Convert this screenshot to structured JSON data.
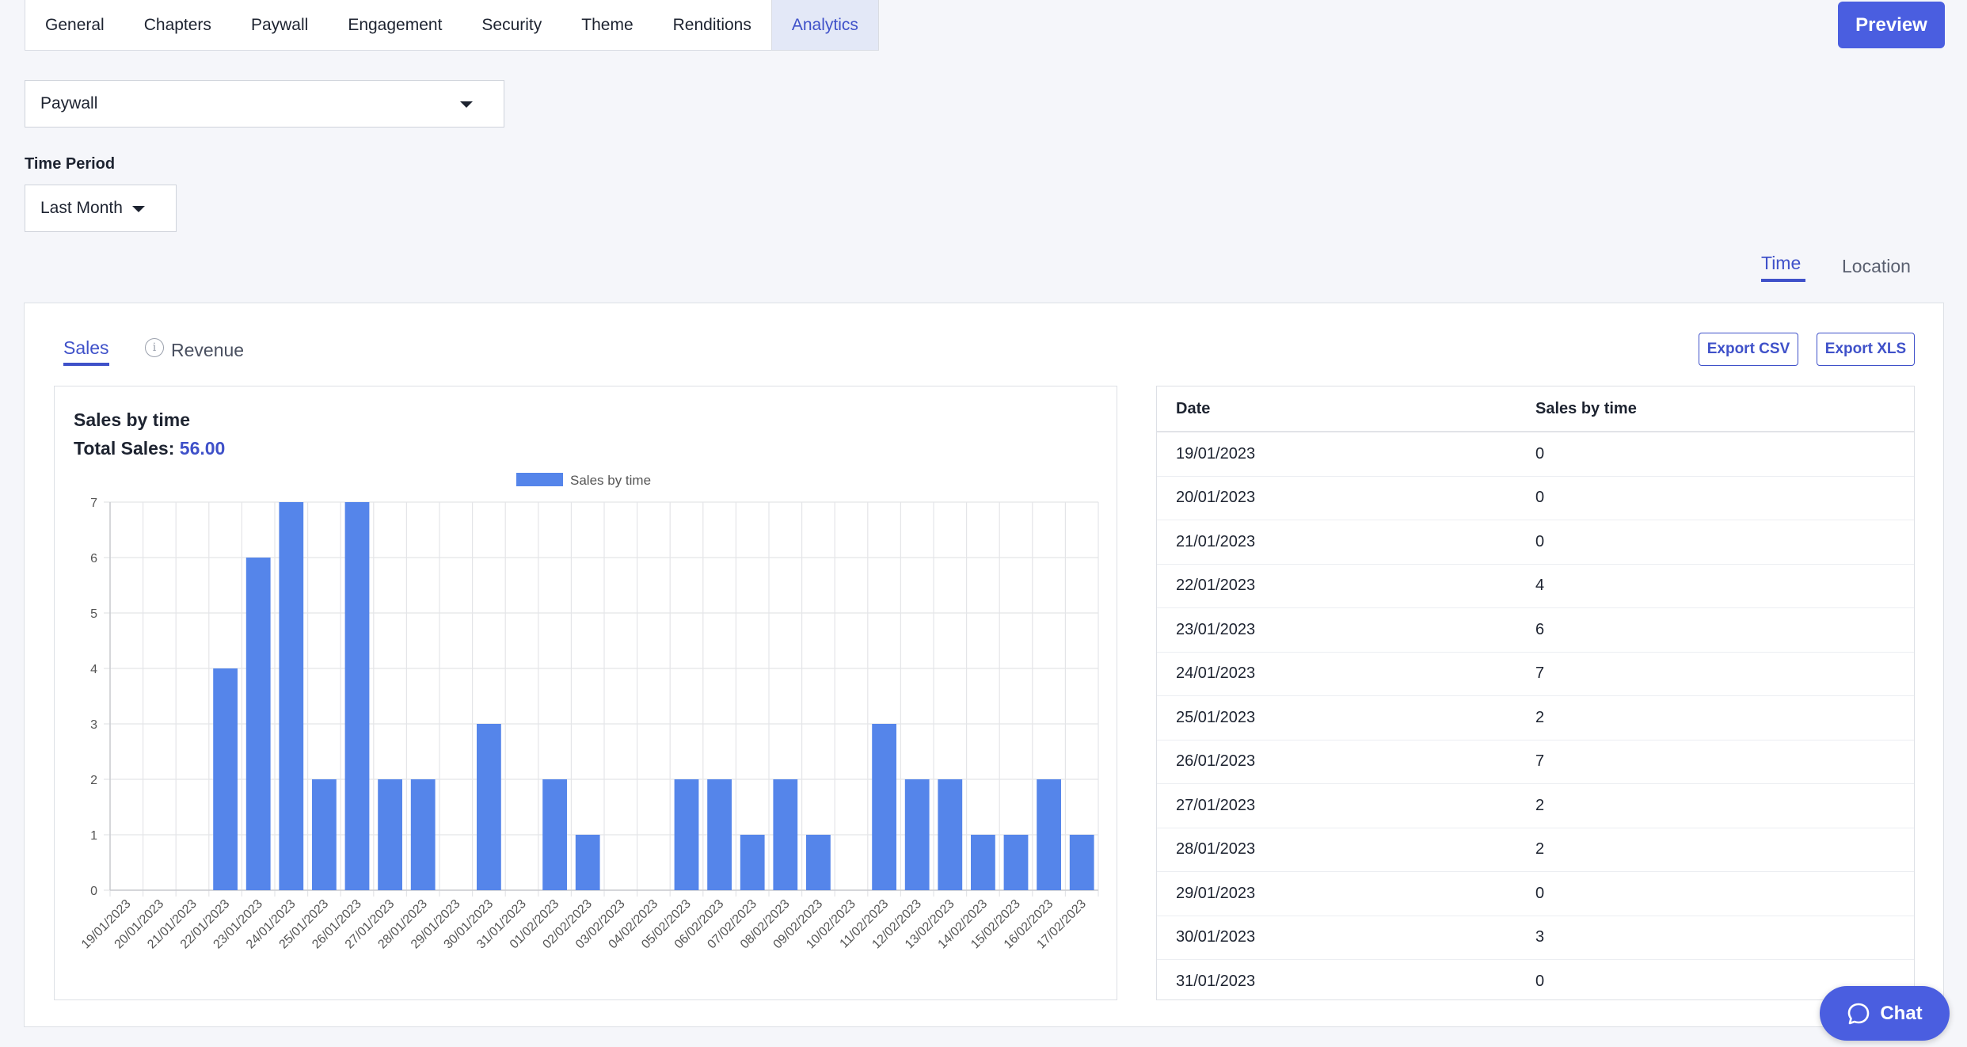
{
  "nav": {
    "tabs": [
      {
        "label": "General"
      },
      {
        "label": "Chapters"
      },
      {
        "label": "Paywall"
      },
      {
        "label": "Engagement"
      },
      {
        "label": "Security"
      },
      {
        "label": "Theme"
      },
      {
        "label": "Renditions"
      },
      {
        "label": "Analytics",
        "active": true
      }
    ],
    "preview_label": "Preview"
  },
  "filters": {
    "paywall_selected": "Paywall",
    "time_period_label": "Time Period",
    "time_period_selected": "Last Month"
  },
  "view_tabs": {
    "time": "Time",
    "location": "Location",
    "active": "time"
  },
  "panel": {
    "tab_sales": "Sales",
    "tab_revenue": "Revenue",
    "export_csv": "Export CSV",
    "export_xls": "Export XLS",
    "chart_title": "Sales by time",
    "total_label": "Total Sales:",
    "total_value": "56.00"
  },
  "table": {
    "headers": [
      "Date",
      "Sales by time"
    ],
    "rows": [
      [
        "19/01/2023",
        "0"
      ],
      [
        "20/01/2023",
        "0"
      ],
      [
        "21/01/2023",
        "0"
      ],
      [
        "22/01/2023",
        "4"
      ],
      [
        "23/01/2023",
        "6"
      ],
      [
        "24/01/2023",
        "7"
      ],
      [
        "25/01/2023",
        "2"
      ],
      [
        "26/01/2023",
        "7"
      ],
      [
        "27/01/2023",
        "2"
      ],
      [
        "28/01/2023",
        "2"
      ],
      [
        "29/01/2023",
        "0"
      ],
      [
        "30/01/2023",
        "3"
      ],
      [
        "31/01/2023",
        "0"
      ]
    ]
  },
  "chart_data": {
    "type": "bar",
    "title": "",
    "legend": [
      "Sales by time"
    ],
    "legend_position": "top-center",
    "grid": true,
    "ylim": [
      0,
      7
    ],
    "yticks": [
      0,
      1,
      2,
      3,
      4,
      5,
      6,
      7
    ],
    "categories": [
      "19/01/2023",
      "20/01/2023",
      "21/01/2023",
      "22/01/2023",
      "23/01/2023",
      "24/01/2023",
      "25/01/2023",
      "26/01/2023",
      "27/01/2023",
      "28/01/2023",
      "29/01/2023",
      "30/01/2023",
      "31/01/2023",
      "01/02/2023",
      "02/02/2023",
      "03/02/2023",
      "04/02/2023",
      "05/02/2023",
      "06/02/2023",
      "07/02/2023",
      "08/02/2023",
      "09/02/2023",
      "10/02/2023",
      "11/02/2023",
      "12/02/2023",
      "13/02/2023",
      "14/02/2023",
      "15/02/2023",
      "16/02/2023",
      "17/02/2023"
    ],
    "series": [
      {
        "name": "Sales by time",
        "color": "#5585ea",
        "values": [
          0,
          0,
          0,
          4,
          6,
          7,
          2,
          7,
          2,
          2,
          0,
          3,
          0,
          2,
          1,
          0,
          0,
          2,
          2,
          1,
          2,
          1,
          0,
          3,
          2,
          2,
          1,
          1,
          2,
          1
        ]
      }
    ]
  },
  "chat": {
    "label": "Chat"
  },
  "colors": {
    "accent": "#4a5ee0",
    "bar": "#5585ea"
  }
}
